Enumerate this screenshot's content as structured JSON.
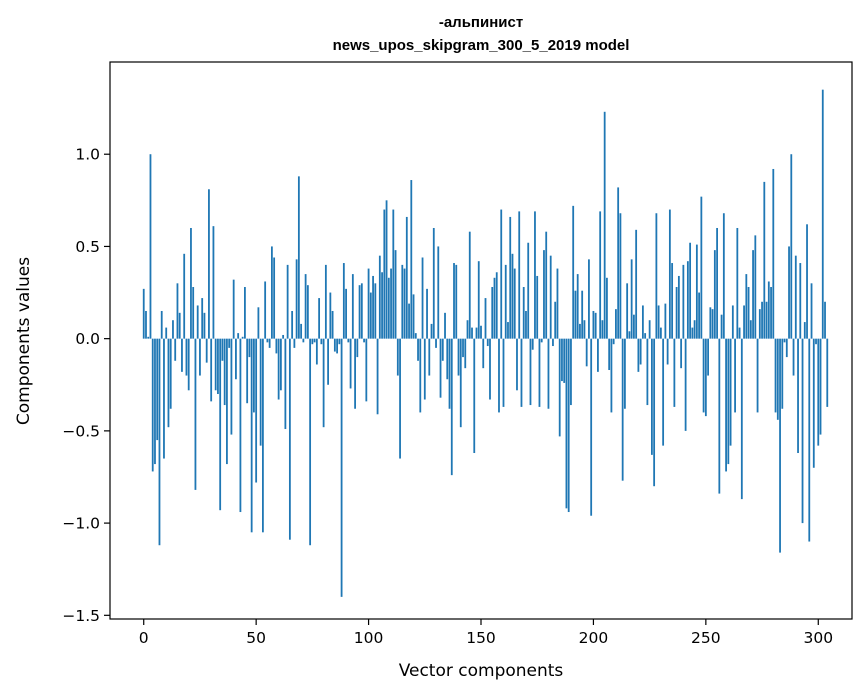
{
  "chart_data": {
    "type": "bar",
    "title": "-альпинист",
    "subtitle": "news_upos_skipgram_300_5_2019 model",
    "xlabel": "Vector components",
    "ylabel": "Components values",
    "xlim": [
      -15,
      315
    ],
    "ylim": [
      -1.52,
      1.5
    ],
    "xticks": [
      0,
      50,
      100,
      150,
      200,
      250,
      300
    ],
    "yticks": [
      -1.5,
      -1.0,
      -0.5,
      0.0,
      0.5,
      1.0
    ],
    "ytick_labels": [
      "−1.5",
      "−1.0",
      "−0.5",
      "0.0",
      "0.5",
      "1.0"
    ],
    "grid": false,
    "bar_color": "#1f77b4",
    "values": [
      0.27,
      0.15,
      0.01,
      1.0,
      -0.72,
      -0.68,
      -0.55,
      -1.12,
      0.15,
      -0.65,
      0.06,
      -0.48,
      -0.38,
      0.1,
      -0.12,
      0.3,
      0.14,
      -0.18,
      0.46,
      -0.2,
      -0.28,
      0.6,
      0.28,
      -0.82,
      0.18,
      -0.2,
      0.22,
      0.14,
      -0.13,
      0.81,
      -0.34,
      0.61,
      -0.28,
      -0.3,
      -0.93,
      -0.12,
      -0.36,
      -0.68,
      -0.05,
      -0.52,
      0.32,
      -0.22,
      0.03,
      -0.94,
      0.01,
      0.28,
      -0.35,
      -0.1,
      -1.05,
      -0.4,
      -0.78,
      0.17,
      -0.58,
      -1.05,
      0.31,
      -0.02,
      -0.05,
      0.5,
      0.44,
      -0.08,
      -0.33,
      -0.28,
      0.02,
      -0.49,
      0.4,
      -1.09,
      0.15,
      -0.05,
      0.43,
      0.88,
      0.08,
      -0.02,
      0.35,
      0.29,
      -1.12,
      -0.03,
      -0.02,
      -0.14,
      0.22,
      -0.03,
      -0.48,
      0.4,
      -0.25,
      0.25,
      0.15,
      -0.07,
      -0.08,
      -0.03,
      -1.4,
      0.41,
      0.27,
      -0.02,
      -0.27,
      0.35,
      -0.38,
      -0.1,
      0.29,
      0.3,
      -0.02,
      -0.34,
      0.38,
      0.25,
      0.34,
      0.3,
      -0.41,
      0.45,
      0.36,
      0.7,
      0.75,
      0.33,
      0.38,
      0.7,
      0.48,
      -0.2,
      -0.65,
      0.4,
      0.38,
      0.66,
      0.19,
      0.86,
      0.24,
      0.03,
      -0.12,
      -0.4,
      0.44,
      -0.33,
      0.27,
      -0.2,
      0.08,
      0.6,
      -0.05,
      0.5,
      -0.32,
      -0.12,
      0.14,
      -0.22,
      -0.38,
      -0.74,
      0.41,
      0.4,
      -0.2,
      -0.48,
      -0.1,
      -0.16,
      0.1,
      0.58,
      0.06,
      -0.62,
      0.06,
      0.42,
      0.07,
      -0.16,
      0.22,
      -0.04,
      -0.33,
      0.28,
      0.33,
      0.36,
      -0.4,
      0.7,
      -0.37,
      0.4,
      0.09,
      0.66,
      0.46,
      0.38,
      -0.28,
      0.69,
      -0.37,
      0.28,
      0.15,
      0.52,
      -0.36,
      -0.06,
      0.69,
      0.34,
      -0.37,
      -0.02,
      0.48,
      0.58,
      -0.38,
      0.45,
      -0.04,
      0.2,
      0.38,
      -0.53,
      -0.23,
      -0.24,
      -0.92,
      -0.94,
      -0.36,
      0.72,
      0.26,
      0.35,
      0.08,
      0.26,
      0.1,
      -0.15,
      0.43,
      -0.96,
      0.15,
      0.14,
      -0.18,
      0.69,
      0.1,
      1.23,
      0.33,
      -0.17,
      -0.4,
      -0.03,
      0.16,
      0.82,
      0.68,
      -0.77,
      -0.38,
      0.3,
      0.04,
      0.43,
      0.13,
      0.59,
      -0.18,
      -0.14,
      0.18,
      0.03,
      -0.36,
      0.1,
      -0.63,
      -0.8,
      0.68,
      0.18,
      0.06,
      -0.58,
      0.19,
      -0.14,
      0.7,
      0.41,
      -0.37,
      0.28,
      0.34,
      -0.16,
      0.4,
      -0.5,
      0.42,
      0.52,
      0.06,
      0.1,
      0.51,
      0.25,
      0.77,
      -0.4,
      -0.42,
      -0.2,
      0.17,
      0.16,
      0.48,
      0.6,
      -0.84,
      0.13,
      0.68,
      -0.72,
      -0.68,
      -0.58,
      0.18,
      -0.4,
      0.6,
      0.06,
      -0.87,
      0.18,
      0.35,
      0.28,
      0.1,
      0.48,
      0.56,
      -0.4,
      0.16,
      0.2,
      0.85,
      0.2,
      0.31,
      0.28,
      0.92,
      -0.4,
      -0.44,
      -1.16,
      -0.38,
      -0.02,
      -0.1,
      0.5,
      1.0,
      -0.2,
      0.45,
      -0.62,
      0.41,
      -1.0,
      0.09,
      0.62,
      -1.1,
      0.3,
      -0.7,
      -0.03,
      -0.58,
      -0.52,
      1.35,
      0.2,
      -0.37
    ]
  }
}
